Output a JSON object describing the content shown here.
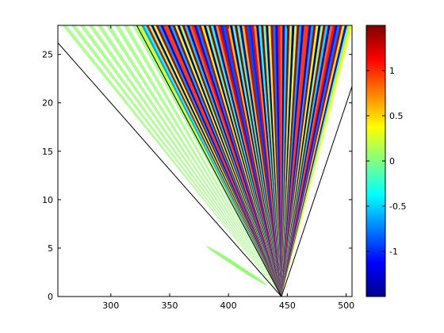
{
  "chart_data": {
    "type": "heatmap",
    "title": "",
    "xlabel": "",
    "ylabel": "",
    "xlim": [
      255,
      505
    ],
    "ylim": [
      0,
      28
    ],
    "x_ticks": [
      300,
      350,
      400,
      450,
      500
    ],
    "y_ticks": [
      0,
      5,
      10,
      15,
      20,
      25
    ],
    "x_tick_labels": [
      "300",
      "350",
      "400",
      "450",
      "500"
    ],
    "y_tick_labels": [
      "0",
      "5",
      "10",
      "15",
      "20",
      "25"
    ],
    "colormap": "jet",
    "color_range": [
      -1.5,
      1.5
    ],
    "colorbar": {
      "ticks": [
        -1,
        -0.5,
        0,
        0.5,
        1
      ],
      "tick_labels": [
        "-1",
        "-0.5",
        "0",
        "0.5",
        "1"
      ]
    },
    "apex": {
      "x": 445,
      "y": 0
    },
    "boundary_lines": [
      {
        "from": {
          "x": 445,
          "y": 0
        },
        "to": {
          "x": 255,
          "y": 26.2
        }
      },
      {
        "from": {
          "x": 445,
          "y": 0
        },
        "to": {
          "x": 322,
          "y": 28
        }
      },
      {
        "from": {
          "x": 445,
          "y": 0
        },
        "to": {
          "x": 505,
          "y": 21.7
        }
      }
    ],
    "wave_region": {
      "apex": {
        "x": 445,
        "y": 0
      },
      "left_edge_top_x": 322,
      "right_edge_top_x": 505,
      "approx_period_x": 7.5
    },
    "low_amplitude_band": {
      "apex": {
        "x": 445,
        "y": 0
      },
      "outer_edge_top_x": 255,
      "value": 0.05
    },
    "low_amplitude_blob": {
      "center": {
        "x": 405,
        "y": 4
      },
      "value": 0.05
    }
  }
}
